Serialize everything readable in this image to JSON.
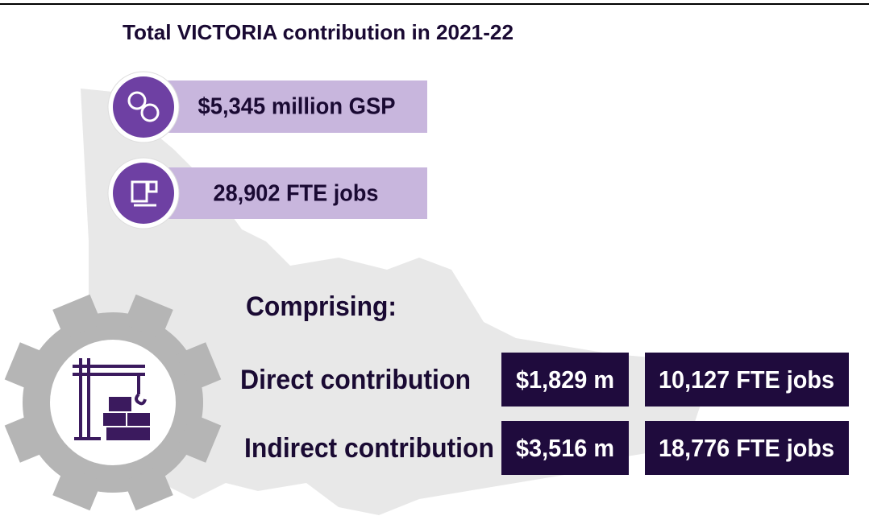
{
  "title": "Total VICTORIA contribution in 2021-22",
  "totals": [
    "$5,345 million GSP",
    "28,902 FTE jobs"
  ],
  "comprising": "Comprising:",
  "rows": [
    {
      "label": "Direct contribution",
      "gsp": "$1,829 m",
      "jobs": "10,127 FTE jobs"
    },
    {
      "label": "Indirect contribution",
      "gsp": "$3,516 m",
      "jobs": "18,776 FTE jobs"
    }
  ]
}
